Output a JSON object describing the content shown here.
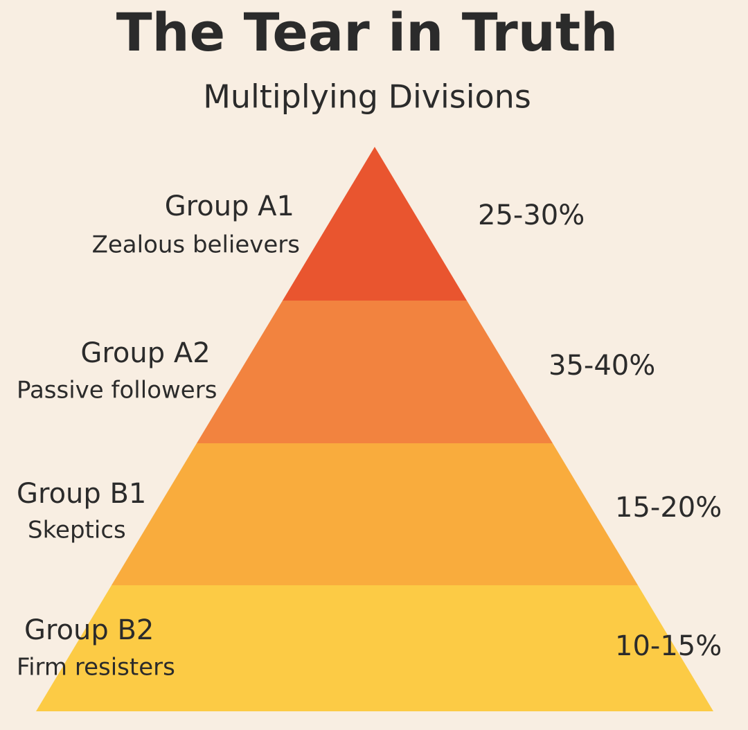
{
  "header": {
    "title": "The Tear in Truth",
    "subtitle": "Multiplying Divisions"
  },
  "levels": [
    {
      "group": "Group A1",
      "description": "Zealous believers",
      "range": "25-30%"
    },
    {
      "group": "Group A2",
      "description": "Passive followers",
      "range": "35-40%"
    },
    {
      "group": "Group B1",
      "description": "Skeptics",
      "range": "15-20%"
    },
    {
      "group": "Group B2",
      "description": "Firm resisters",
      "range": "10-15%"
    }
  ]
}
